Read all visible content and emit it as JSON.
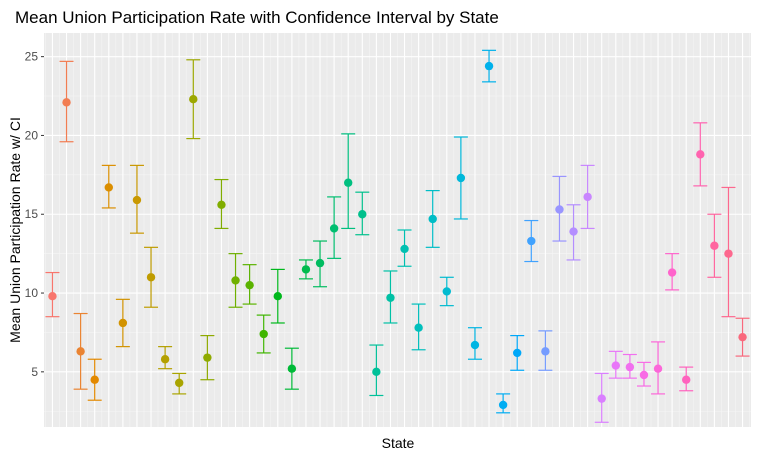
{
  "chart_data": {
    "type": "errorbar",
    "title": "Mean Union Participation Rate with Confidence Interval by State",
    "xlabel": "State",
    "ylabel": "Mean Union Participation Rate w/ CI",
    "ylim": [
      1.5,
      26.5
    ],
    "yticks": [
      5,
      10,
      15,
      20,
      25
    ],
    "grid": true,
    "legend": "none",
    "points": [
      {
        "mean": 9.8,
        "lower": 8.5,
        "upper": 11.3,
        "color": "#F8766D"
      },
      {
        "mean": 22.1,
        "lower": 19.6,
        "upper": 24.7,
        "color": "#F27D52"
      },
      {
        "mean": 6.3,
        "lower": 3.9,
        "upper": 8.7,
        "color": "#EA8331"
      },
      {
        "mean": 4.5,
        "lower": 3.2,
        "upper": 5.8,
        "color": "#E38900"
      },
      {
        "mean": 16.7,
        "lower": 15.4,
        "upper": 18.1,
        "color": "#DB8E00"
      },
      {
        "mean": 8.1,
        "lower": 6.6,
        "upper": 9.6,
        "color": "#D29300"
      },
      {
        "mean": 15.9,
        "lower": 13.8,
        "upper": 18.1,
        "color": "#C99800"
      },
      {
        "mean": 11.0,
        "lower": 9.1,
        "upper": 12.9,
        "color": "#BF9C00"
      },
      {
        "mean": 5.8,
        "lower": 5.2,
        "upper": 6.6,
        "color": "#B4A000"
      },
      {
        "mean": 4.3,
        "lower": 3.6,
        "upper": 4.9,
        "color": "#A9A400"
      },
      {
        "mean": 22.3,
        "lower": 19.8,
        "upper": 24.8,
        "color": "#9CA700"
      },
      {
        "mean": 5.9,
        "lower": 4.5,
        "upper": 7.3,
        "color": "#8FAA00"
      },
      {
        "mean": 15.6,
        "lower": 14.1,
        "upper": 17.2,
        "color": "#80AD00"
      },
      {
        "mean": 10.8,
        "lower": 9.1,
        "upper": 12.5,
        "color": "#6FB000"
      },
      {
        "mean": 10.5,
        "lower": 9.3,
        "upper": 11.8,
        "color": "#5BB300"
      },
      {
        "mean": 7.4,
        "lower": 6.2,
        "upper": 8.6,
        "color": "#3FB500"
      },
      {
        "mean": 9.8,
        "lower": 8.1,
        "upper": 11.5,
        "color": "#00B81C"
      },
      {
        "mean": 5.2,
        "lower": 3.9,
        "upper": 6.5,
        "color": "#00BA38"
      },
      {
        "mean": 11.5,
        "lower": 10.9,
        "upper": 12.1,
        "color": "#00BB4E"
      },
      {
        "mean": 11.9,
        "lower": 10.4,
        "upper": 13.3,
        "color": "#00BC60"
      },
      {
        "mean": 14.1,
        "lower": 12.2,
        "upper": 16.1,
        "color": "#00BE70"
      },
      {
        "mean": 17.0,
        "lower": 14.1,
        "upper": 20.1,
        "color": "#00BF7F"
      },
      {
        "mean": 15.0,
        "lower": 13.7,
        "upper": 16.4,
        "color": "#00C08C"
      },
      {
        "mean": 5.0,
        "lower": 3.5,
        "upper": 6.7,
        "color": "#00C199"
      },
      {
        "mean": 9.7,
        "lower": 8.1,
        "upper": 11.4,
        "color": "#00C1A5"
      },
      {
        "mean": 12.8,
        "lower": 11.7,
        "upper": 14.0,
        "color": "#00C0B1"
      },
      {
        "mean": 7.8,
        "lower": 6.4,
        "upper": 9.3,
        "color": "#00BFBC"
      },
      {
        "mean": 14.7,
        "lower": 12.9,
        "upper": 16.5,
        "color": "#00BDC6"
      },
      {
        "mean": 10.1,
        "lower": 9.2,
        "upper": 11.0,
        "color": "#00BBD0"
      },
      {
        "mean": 17.3,
        "lower": 14.7,
        "upper": 19.9,
        "color": "#00B8DA"
      },
      {
        "mean": 6.7,
        "lower": 5.8,
        "upper": 7.8,
        "color": "#00B5E3"
      },
      {
        "mean": 24.4,
        "lower": 23.4,
        "upper": 25.4,
        "color": "#00B1EB"
      },
      {
        "mean": 2.9,
        "lower": 2.4,
        "upper": 3.6,
        "color": "#00ADF2"
      },
      {
        "mean": 6.2,
        "lower": 5.1,
        "upper": 7.3,
        "color": "#00A8F9"
      },
      {
        "mean": 13.3,
        "lower": 12.0,
        "upper": 14.6,
        "color": "#40A2FE"
      },
      {
        "mean": 6.3,
        "lower": 5.1,
        "upper": 7.6,
        "color": "#759CFF"
      },
      {
        "mean": 15.3,
        "lower": 13.3,
        "upper": 17.4,
        "color": "#9995FF"
      },
      {
        "mean": 13.9,
        "lower": 12.1,
        "upper": 15.6,
        "color": "#B48EFF"
      },
      {
        "mean": 16.1,
        "lower": 14.1,
        "upper": 18.1,
        "color": "#C986FF"
      },
      {
        "mean": 3.3,
        "lower": 1.8,
        "upper": 4.9,
        "color": "#DA7FFF"
      },
      {
        "mean": 5.4,
        "lower": 4.6,
        "upper": 6.3,
        "color": "#E877F8"
      },
      {
        "mean": 5.3,
        "lower": 4.6,
        "upper": 6.1,
        "color": "#F170EF"
      },
      {
        "mean": 4.8,
        "lower": 4.1,
        "upper": 5.6,
        "color": "#F86BE5"
      },
      {
        "mean": 5.2,
        "lower": 3.6,
        "upper": 6.9,
        "color": "#FC67D9"
      },
      {
        "mean": 11.3,
        "lower": 10.2,
        "upper": 12.5,
        "color": "#FF64CC"
      },
      {
        "mean": 4.5,
        "lower": 3.8,
        "upper": 5.3,
        "color": "#FF63BE"
      },
      {
        "mean": 18.8,
        "lower": 16.8,
        "upper": 20.8,
        "color": "#FF63AF"
      },
      {
        "mean": 13.0,
        "lower": 11.0,
        "upper": 15.0,
        "color": "#FF659F"
      },
      {
        "mean": 12.5,
        "lower": 8.5,
        "upper": 16.7,
        "color": "#FD688E"
      },
      {
        "mean": 7.2,
        "lower": 6.0,
        "upper": 8.4,
        "color": "#F9697D"
      }
    ]
  }
}
